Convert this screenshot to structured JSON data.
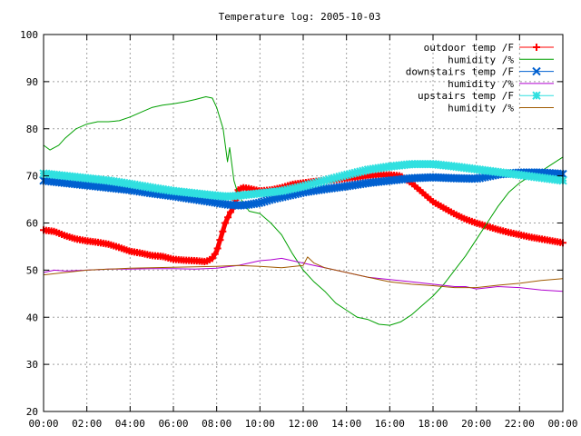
{
  "chart_data": {
    "type": "line",
    "title": "Temperature log: 2005-10-03",
    "xlabel": "",
    "ylabel": "",
    "xlim": [
      0,
      24
    ],
    "ylim": [
      20,
      100
    ],
    "x_ticks": [
      "00:00",
      "02:00",
      "04:00",
      "06:00",
      "08:00",
      "10:00",
      "12:00",
      "14:00",
      "16:00",
      "18:00",
      "20:00",
      "22:00",
      "00:00"
    ],
    "y_ticks": [
      20,
      30,
      40,
      50,
      60,
      70,
      80,
      90,
      100
    ],
    "grid": true,
    "legend_position": "top-right",
    "series": [
      {
        "name": "outdoor temp /F",
        "color": "#ff0000",
        "marker": "plus",
        "x": [
          0,
          0.5,
          1,
          1.5,
          2,
          2.5,
          3,
          3.5,
          4,
          4.5,
          5,
          5.5,
          6,
          6.5,
          7,
          7.5,
          7.8,
          8.0,
          8.2,
          8.4,
          8.6,
          8.8,
          9.0,
          9.2,
          9.5,
          10,
          10.5,
          11,
          11.5,
          12,
          12.5,
          13,
          13.5,
          14,
          14.5,
          15,
          15.5,
          16,
          16.5,
          17,
          17.5,
          18,
          18.5,
          19,
          19.5,
          20,
          20.5,
          21,
          21.5,
          22,
          22.5,
          23,
          23.5,
          24
        ],
        "y": [
          58.5,
          58.2,
          57.3,
          56.6,
          56.2,
          55.9,
          55.5,
          54.8,
          54.0,
          53.6,
          53.1,
          52.9,
          52.3,
          52.1,
          52.0,
          51.8,
          52.5,
          54.0,
          57.0,
          60.0,
          62.0,
          63.5,
          67.0,
          67.5,
          67.3,
          66.8,
          67.0,
          67.5,
          68.2,
          68.5,
          68.8,
          69.0,
          69.2,
          69.5,
          69.7,
          70.0,
          70.2,
          70.2,
          70.0,
          68.5,
          66.5,
          64.5,
          63.2,
          61.9,
          60.8,
          60.0,
          59.3,
          58.6,
          58.0,
          57.5,
          57.0,
          56.6,
          56.2,
          55.8
        ]
      },
      {
        "name": "humidity /%",
        "color": "#00a000",
        "marker": "none",
        "x": [
          0,
          0.3,
          0.7,
          1,
          1.5,
          2,
          2.5,
          3,
          3.5,
          4,
          4.5,
          5,
          5.5,
          6,
          6.5,
          7,
          7.5,
          7.8,
          8.0,
          8.3,
          8.5,
          8.6,
          8.8,
          9.0,
          9.2,
          9.5,
          10,
          10.5,
          11,
          11.5,
          12,
          12.5,
          13,
          13.5,
          14,
          14.5,
          15,
          15.5,
          16,
          16.5,
          17,
          17.5,
          18,
          18.5,
          19,
          19.5,
          20,
          20.5,
          21,
          21.5,
          22,
          22.5,
          23,
          23.5,
          24
        ],
        "y": [
          76.5,
          75.5,
          76.5,
          78.0,
          80.0,
          81.0,
          81.5,
          81.5,
          81.7,
          82.5,
          83.5,
          84.5,
          85.0,
          85.3,
          85.7,
          86.2,
          86.8,
          86.5,
          84.5,
          80.0,
          73.0,
          76.0,
          69.0,
          66.0,
          64.5,
          62.5,
          62.0,
          60.0,
          57.5,
          53.5,
          50.0,
          47.5,
          45.5,
          43.0,
          41.5,
          40.0,
          39.5,
          38.5,
          38.3,
          39.0,
          40.5,
          42.5,
          44.5,
          47.0,
          50.0,
          53.0,
          56.5,
          60.0,
          63.5,
          66.5,
          68.5,
          70.0,
          71.0,
          72.5,
          74.0
        ]
      },
      {
        "name": "downstairs temp /F",
        "color": "#0060d0",
        "marker": "x",
        "x": [
          0,
          1,
          2,
          3,
          4,
          5,
          6,
          7,
          8,
          8.5,
          9,
          9.5,
          10,
          10.5,
          11,
          12,
          13,
          14,
          15,
          16,
          17,
          18,
          19,
          20,
          21,
          22,
          23,
          24
        ],
        "y": [
          69.0,
          68.5,
          68.0,
          67.5,
          67.0,
          66.3,
          65.7,
          65.0,
          64.3,
          63.9,
          63.7,
          63.9,
          64.3,
          65.0,
          65.5,
          66.5,
          67.2,
          67.8,
          68.5,
          69.0,
          69.5,
          69.7,
          69.5,
          69.4,
          70.3,
          70.7,
          70.7,
          70.4
        ]
      },
      {
        "name": "humidity /%",
        "color": "#b000d0",
        "marker": "none",
        "x": [
          0,
          0.5,
          1,
          2,
          3,
          4,
          5,
          6,
          7,
          8,
          9,
          9.5,
          10,
          10.5,
          11,
          11.5,
          12,
          12.5,
          13,
          14,
          15,
          16,
          17,
          18,
          19,
          19.5,
          20,
          21,
          22,
          23,
          24
        ],
        "y": [
          49.5,
          50.0,
          49.8,
          50.0,
          50.2,
          50.2,
          50.3,
          50.3,
          50.2,
          50.4,
          51.0,
          51.5,
          52.0,
          52.2,
          52.5,
          52.0,
          51.5,
          51.0,
          50.5,
          49.5,
          48.5,
          48.0,
          47.5,
          47.0,
          46.5,
          46.5,
          46.0,
          46.5,
          46.3,
          45.8,
          45.5
        ]
      },
      {
        "name": "upstairs temp /F",
        "color": "#30e0e0",
        "marker": "star",
        "x": [
          0,
          1,
          2,
          3,
          4,
          5,
          6,
          7,
          8,
          8.5,
          9,
          10,
          11,
          12,
          13,
          14,
          15,
          16,
          17,
          18,
          19,
          20,
          21,
          22,
          23,
          24
        ],
        "y": [
          70.5,
          70.0,
          69.5,
          69.0,
          68.3,
          67.5,
          66.8,
          66.3,
          65.8,
          65.6,
          65.8,
          66.3,
          66.8,
          67.8,
          69.0,
          70.2,
          71.3,
          72.0,
          72.5,
          72.5,
          72.0,
          71.4,
          70.8,
          70.2,
          69.6,
          69.0
        ]
      },
      {
        "name": "humidity /%",
        "color": "#a05a00",
        "marker": "none",
        "x": [
          0,
          1,
          2,
          3,
          4,
          5,
          6,
          7,
          8,
          9,
          10,
          11,
          12,
          12.2,
          12.5,
          13,
          14,
          15,
          16,
          17,
          18,
          19,
          20,
          21,
          22,
          23,
          24
        ],
        "y": [
          49.0,
          49.5,
          50.0,
          50.2,
          50.4,
          50.5,
          50.6,
          50.7,
          50.8,
          51.0,
          50.8,
          50.5,
          51.0,
          52.8,
          51.5,
          50.5,
          49.5,
          48.5,
          47.5,
          47.0,
          46.7,
          46.3,
          46.3,
          46.8,
          47.2,
          47.8,
          48.2
        ]
      }
    ]
  }
}
